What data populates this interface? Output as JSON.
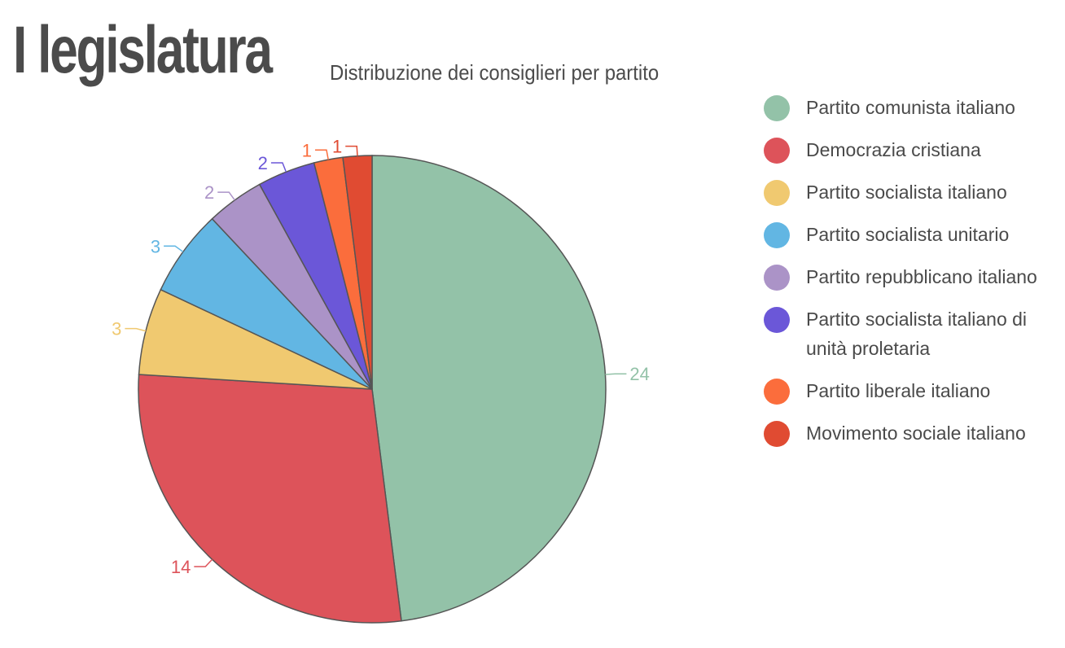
{
  "title": "I legislatura",
  "subtitle": "Distribuzione dei consiglieri per partito",
  "chart_data": {
    "type": "pie",
    "title": "I legislatura",
    "subtitle": "Distribuzione dei consiglieri per partito",
    "legend_position": "right",
    "categories": [
      "Partito comunista italiano",
      "Democrazia cristiana",
      "Partito socialista italiano",
      "Partito socialista unitario",
      "Partito repubblicano italiano",
      "Partito socialista italiano di unità proletaria",
      "Partito liberale italiano",
      "Movimento sociale italiano"
    ],
    "values": [
      24,
      14,
      3,
      3,
      2,
      2,
      1,
      1
    ],
    "colors": [
      "#93c2a8",
      "#dd535a",
      "#f0c970",
      "#62b6e3",
      "#ab93c7",
      "#6b57d8",
      "#fb6d3c",
      "#e04b32"
    ],
    "data_labels": [
      "24",
      "14",
      "3",
      "3",
      "2",
      "2",
      "1",
      "1"
    ]
  }
}
